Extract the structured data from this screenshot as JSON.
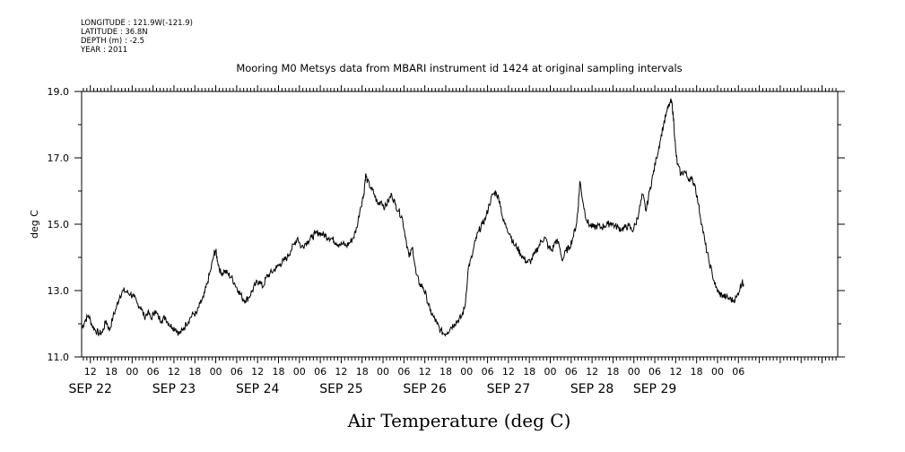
{
  "metadata": {
    "longitude": "LONGITUDE : 121.9W(-121.9)",
    "latitude": "LATITUDE : 36.8N",
    "depth": "DEPTH (m) : -2.5",
    "year": "YEAR : 2011"
  },
  "chart_data": {
    "type": "line",
    "title": "Mooring M0 Metsys data from MBARI instrument id 1424 at original sampling intervals",
    "xlabel": "Air Temperature (deg C)",
    "ylabel": "deg C",
    "ylim": [
      11.0,
      19.0
    ],
    "y_ticks": [
      "11.0",
      "13.0",
      "15.0",
      "17.0",
      "19.0"
    ],
    "x_unit": "hours since Sep 22 00:00, 2011",
    "xlim": [
      9.5,
      226.5
    ],
    "x_hour_ticks": [
      {
        "x": 12,
        "label": "12"
      },
      {
        "x": 18,
        "label": "18"
      },
      {
        "x": 24,
        "label": "00"
      },
      {
        "x": 30,
        "label": "06"
      },
      {
        "x": 36,
        "label": "12"
      },
      {
        "x": 42,
        "label": "18"
      },
      {
        "x": 48,
        "label": "00"
      },
      {
        "x": 54,
        "label": "06"
      },
      {
        "x": 60,
        "label": "12"
      },
      {
        "x": 66,
        "label": "18"
      },
      {
        "x": 72,
        "label": "00"
      },
      {
        "x": 78,
        "label": "06"
      },
      {
        "x": 84,
        "label": "12"
      },
      {
        "x": 90,
        "label": "18"
      },
      {
        "x": 96,
        "label": "00"
      },
      {
        "x": 102,
        "label": "06"
      },
      {
        "x": 108,
        "label": "12"
      },
      {
        "x": 114,
        "label": "18"
      },
      {
        "x": 120,
        "label": "00"
      },
      {
        "x": 126,
        "label": "06"
      },
      {
        "x": 132,
        "label": "12"
      },
      {
        "x": 138,
        "label": "18"
      },
      {
        "x": 144,
        "label": "00"
      },
      {
        "x": 150,
        "label": "06"
      },
      {
        "x": 156,
        "label": "12"
      },
      {
        "x": 162,
        "label": "18"
      },
      {
        "x": 168,
        "label": "00"
      },
      {
        "x": 174,
        "label": "06"
      },
      {
        "x": 180,
        "label": "12"
      },
      {
        "x": 186,
        "label": "18"
      },
      {
        "x": 192,
        "label": "00"
      },
      {
        "x": 198,
        "label": "06"
      }
    ],
    "x_day_labels": [
      {
        "x": 12,
        "label": "SEP 22"
      },
      {
        "x": 36,
        "label": "SEP 23"
      },
      {
        "x": 60,
        "label": "SEP 24"
      },
      {
        "x": 84,
        "label": "SEP 25"
      },
      {
        "x": 108,
        "label": "SEP 26"
      },
      {
        "x": 132,
        "label": "SEP 27"
      },
      {
        "x": 156,
        "label": "SEP 28"
      },
      {
        "x": 174,
        "label": "SEP 29"
      }
    ],
    "series": [
      {
        "values": [
          [
            9.5,
            11.85
          ],
          [
            10.5,
            12.1
          ],
          [
            11.5,
            12.25
          ],
          [
            12.5,
            11.95
          ],
          [
            13.5,
            11.8
          ],
          [
            14.5,
            11.7
          ],
          [
            15.5,
            11.75
          ],
          [
            16.5,
            12.1
          ],
          [
            17.5,
            11.8
          ],
          [
            18.5,
            12.2
          ],
          [
            19.5,
            12.5
          ],
          [
            20.5,
            12.85
          ],
          [
            21.5,
            13.0
          ],
          [
            22.5,
            12.95
          ],
          [
            23.5,
            12.9
          ],
          [
            24.5,
            12.8
          ],
          [
            25.5,
            12.6
          ],
          [
            26.5,
            12.5
          ],
          [
            27.5,
            12.2
          ],
          [
            28.5,
            12.35
          ],
          [
            29.5,
            12.15
          ],
          [
            30.5,
            12.4
          ],
          [
            31.5,
            12.2
          ],
          [
            32.5,
            12.1
          ],
          [
            33.5,
            12.2
          ],
          [
            34.5,
            12.0
          ],
          [
            35.5,
            11.9
          ],
          [
            36.5,
            11.85
          ],
          [
            37.5,
            11.7
          ],
          [
            38.5,
            11.8
          ],
          [
            39.5,
            12.0
          ],
          [
            40.5,
            12.15
          ],
          [
            41.5,
            12.3
          ],
          [
            42.5,
            12.3
          ],
          [
            43.5,
            12.6
          ],
          [
            44.5,
            12.8
          ],
          [
            45.5,
            13.2
          ],
          [
            46.5,
            13.6
          ],
          [
            47.5,
            14.1
          ],
          [
            48.0,
            14.2
          ],
          [
            48.5,
            13.9
          ],
          [
            49.5,
            13.5
          ],
          [
            50.5,
            13.6
          ],
          [
            51.5,
            13.5
          ],
          [
            52.5,
            13.4
          ],
          [
            53.5,
            13.2
          ],
          [
            54.5,
            13.0
          ],
          [
            55.5,
            12.8
          ],
          [
            56.5,
            12.7
          ],
          [
            57.5,
            12.8
          ],
          [
            58.5,
            13.0
          ],
          [
            59.5,
            13.2
          ],
          [
            60.5,
            13.3
          ],
          [
            61.5,
            13.1
          ],
          [
            62.5,
            13.4
          ],
          [
            63.5,
            13.5
          ],
          [
            64.5,
            13.6
          ],
          [
            65.5,
            13.7
          ],
          [
            66.5,
            13.8
          ],
          [
            67.5,
            13.9
          ],
          [
            68.5,
            14.0
          ],
          [
            69.5,
            14.2
          ],
          [
            70.5,
            14.4
          ],
          [
            71.5,
            14.6
          ],
          [
            72.5,
            14.3
          ],
          [
            73.5,
            14.4
          ],
          [
            74.5,
            14.5
          ],
          [
            75.5,
            14.6
          ],
          [
            76.5,
            14.7
          ],
          [
            77.5,
            14.75
          ],
          [
            78.5,
            14.7
          ],
          [
            79.5,
            14.65
          ],
          [
            80.5,
            14.6
          ],
          [
            81.5,
            14.55
          ],
          [
            82.5,
            14.45
          ],
          [
            83.5,
            14.4
          ],
          [
            84.5,
            14.4
          ],
          [
            85.5,
            14.35
          ],
          [
            86.5,
            14.45
          ],
          [
            87.5,
            14.6
          ],
          [
            88.5,
            14.9
          ],
          [
            89.5,
            15.5
          ],
          [
            90.5,
            15.9
          ],
          [
            91.0,
            16.5
          ],
          [
            91.5,
            16.3
          ],
          [
            92.5,
            16.1
          ],
          [
            93.5,
            15.9
          ],
          [
            94.5,
            15.6
          ],
          [
            95.5,
            15.7
          ],
          [
            96.5,
            15.5
          ],
          [
            97.5,
            15.7
          ],
          [
            98.5,
            15.9
          ],
          [
            99.5,
            15.6
          ],
          [
            100.5,
            15.4
          ],
          [
            101.5,
            15.2
          ],
          [
            102.5,
            14.6
          ],
          [
            103.5,
            14.0
          ],
          [
            104.5,
            14.3
          ],
          [
            105.5,
            13.5
          ],
          [
            106.5,
            13.2
          ],
          [
            107.5,
            13.1
          ],
          [
            108.5,
            12.8
          ],
          [
            109.5,
            12.4
          ],
          [
            110.5,
            12.2
          ],
          [
            111.5,
            12.0
          ],
          [
            112.5,
            11.8
          ],
          [
            113.5,
            11.7
          ],
          [
            114.5,
            11.75
          ],
          [
            115.5,
            11.9
          ],
          [
            116.5,
            12.0
          ],
          [
            117.5,
            12.1
          ],
          [
            118.5,
            12.2
          ],
          [
            119.5,
            12.5
          ],
          [
            120.5,
            13.7
          ],
          [
            121.5,
            14.0
          ],
          [
            122.5,
            14.5
          ],
          [
            123.5,
            14.8
          ],
          [
            124.5,
            15.0
          ],
          [
            125.5,
            15.2
          ],
          [
            126.5,
            15.6
          ],
          [
            127.5,
            15.9
          ],
          [
            128.5,
            15.95
          ],
          [
            129.5,
            15.7
          ],
          [
            130.5,
            15.1
          ],
          [
            131.5,
            14.9
          ],
          [
            132.5,
            14.7
          ],
          [
            133.5,
            14.4
          ],
          [
            134.5,
            14.3
          ],
          [
            135.5,
            14.1
          ],
          [
            136.5,
            13.95
          ],
          [
            137.5,
            13.85
          ],
          [
            138.5,
            13.9
          ],
          [
            139.5,
            14.1
          ],
          [
            140.5,
            14.3
          ],
          [
            141.5,
            14.5
          ],
          [
            142.5,
            14.6
          ],
          [
            143.5,
            14.3
          ],
          [
            144.5,
            14.2
          ],
          [
            145.5,
            14.5
          ],
          [
            146.5,
            14.4
          ],
          [
            147.5,
            13.9
          ],
          [
            148.5,
            14.2
          ],
          [
            149.5,
            14.3
          ],
          [
            150.5,
            14.6
          ],
          [
            151.5,
            15.0
          ],
          [
            152.0,
            15.5
          ],
          [
            152.5,
            16.3
          ],
          [
            153.5,
            15.6
          ],
          [
            154.5,
            15.1
          ],
          [
            155.5,
            14.95
          ],
          [
            156.5,
            14.9
          ],
          [
            157.5,
            14.95
          ],
          [
            158.5,
            14.9
          ],
          [
            159.5,
            14.95
          ],
          [
            160.5,
            15.0
          ],
          [
            161.5,
            15.05
          ],
          [
            162.5,
            14.95
          ],
          [
            163.5,
            14.9
          ],
          [
            164.5,
            14.85
          ],
          [
            165.5,
            14.9
          ],
          [
            166.5,
            14.95
          ],
          [
            167.5,
            14.8
          ],
          [
            168.5,
            15.0
          ],
          [
            169.5,
            15.4
          ],
          [
            170.5,
            15.9
          ],
          [
            171.5,
            15.4
          ],
          [
            172.5,
            16.0
          ],
          [
            173.5,
            16.5
          ],
          [
            174.5,
            17.0
          ],
          [
            175.5,
            17.5
          ],
          [
            176.5,
            18.0
          ],
          [
            177.5,
            18.4
          ],
          [
            178.5,
            18.7
          ],
          [
            179.0,
            18.6
          ],
          [
            179.5,
            18.0
          ],
          [
            180.0,
            17.2
          ],
          [
            180.5,
            16.8
          ],
          [
            181.5,
            16.5
          ],
          [
            182.5,
            16.6
          ],
          [
            183.5,
            16.4
          ],
          [
            184.5,
            16.35
          ],
          [
            185.5,
            16.2
          ],
          [
            186.5,
            15.6
          ],
          [
            187.5,
            15.0
          ],
          [
            188.5,
            14.4
          ],
          [
            189.5,
            13.9
          ],
          [
            190.5,
            13.5
          ],
          [
            191.5,
            13.1
          ],
          [
            192.5,
            12.9
          ],
          [
            193.5,
            12.85
          ],
          [
            194.5,
            12.8
          ],
          [
            195.5,
            12.75
          ],
          [
            196.5,
            12.7
          ],
          [
            197.5,
            12.8
          ],
          [
            198.5,
            13.1
          ],
          [
            199.0,
            13.25
          ],
          [
            199.5,
            13.2
          ]
        ]
      }
    ]
  }
}
